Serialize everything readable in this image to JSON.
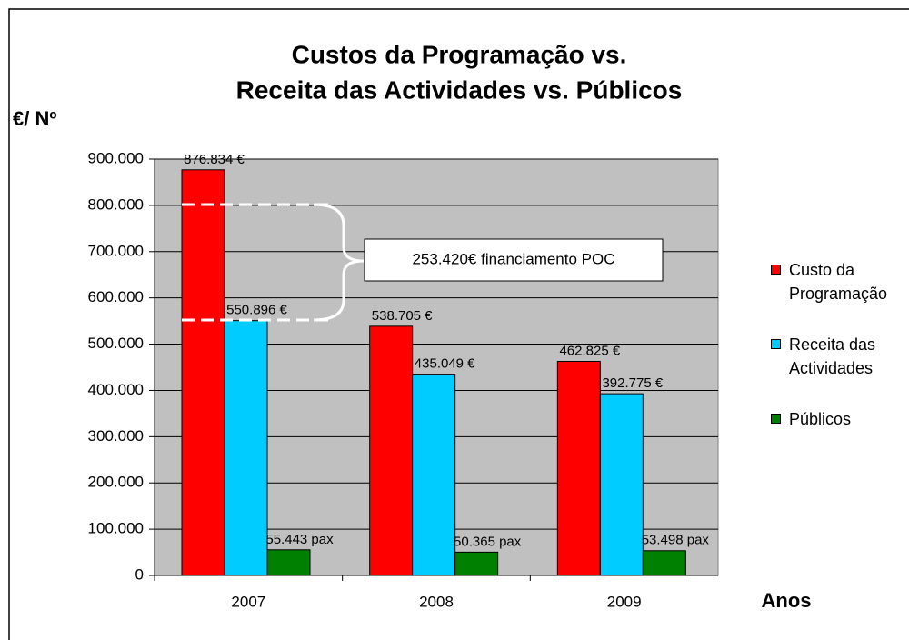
{
  "chart_data": {
    "type": "bar",
    "title": [
      "Custos da Programação vs.",
      "Receita das Actividades vs. Públicos"
    ],
    "y_label": "€/ Nº",
    "x_label": "Anos",
    "annotation": "253.420€ financiamento POC",
    "categories": [
      "2007",
      "2008",
      "2009"
    ],
    "series": [
      {
        "name": "Custo da Programação",
        "color": "#ff0000",
        "values": [
          876834,
          538705,
          462825
        ],
        "value_labels": [
          "876.834 €",
          "538.705 €",
          "462.825 €"
        ]
      },
      {
        "name": "Receita das Actividades",
        "color": "#00ccff",
        "values": [
          550896,
          435049,
          392775
        ],
        "value_labels": [
          "550.896 €",
          "435.049 €",
          "392.775 €"
        ]
      },
      {
        "name": "Públicos",
        "color": "#008000",
        "values": [
          55443,
          50365,
          53498
        ],
        "value_labels": [
          "55.443 pax",
          "50.365 pax",
          "53.498 pax"
        ]
      }
    ],
    "ylim": [
      0,
      900000
    ],
    "yticks": [
      0,
      {
        "value": 100000,
        "label": "100.000"
      },
      {
        "value": 200000,
        "label": "200.000"
      },
      {
        "value": 300000,
        "label": "300.000"
      },
      {
        "value": 400000,
        "label": "400.000"
      },
      {
        "value": 500000,
        "label": "500.000"
      },
      {
        "value": 600000,
        "label": "600.000"
      },
      {
        "value": 700000,
        "label": "700.000"
      },
      {
        "value": 800000,
        "label": "800.000"
      },
      {
        "value": 900000,
        "label": "900.000"
      }
    ],
    "grid": true
  }
}
